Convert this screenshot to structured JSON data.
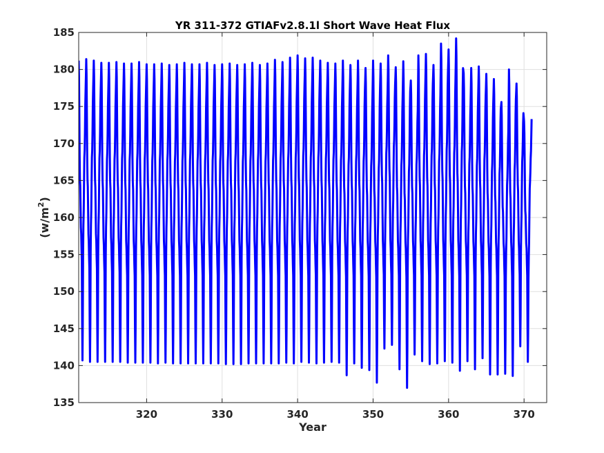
{
  "chart_data": {
    "type": "line",
    "title": "YR 311-372 GTIAFv2.8.1l Short Wave Heat Flux",
    "xlabel": "Year",
    "ylabel": "(w/m",
    "ylabel_superscript": "2",
    "ylabel_close": ")",
    "xlim": [
      311,
      373
    ],
    "ylim": [
      135,
      185
    ],
    "xticks": [
      320,
      330,
      340,
      350,
      360,
      370
    ],
    "xtick_labels": [
      "320",
      "330",
      "340",
      "350",
      "360",
      "370"
    ],
    "yticks": [
      135,
      140,
      145,
      150,
      155,
      160,
      165,
      170,
      175,
      180,
      185
    ],
    "ytick_labels": [
      "135",
      "140",
      "145",
      "150",
      "155",
      "160",
      "165",
      "170",
      "175",
      "180",
      "185"
    ],
    "grid": true,
    "series_color": "#0000ff",
    "series": [
      {
        "cycle_start_year": 311,
        "cycles_per_year": 1,
        "annual_max": [
          181.2,
          181.4,
          181.2,
          180.9,
          180.9,
          181.0,
          180.8,
          180.8,
          181.0,
          180.7,
          180.7,
          180.8,
          180.6,
          180.7,
          180.9,
          180.7,
          180.7,
          180.9,
          180.6,
          180.7,
          180.8,
          180.6,
          180.7,
          180.9,
          180.6,
          180.8,
          181.3,
          181.0,
          181.6,
          181.9,
          181.5,
          181.6,
          181.2,
          180.9,
          180.8,
          181.2,
          180.6,
          181.2,
          180.2,
          181.2,
          180.8,
          181.9,
          180.3,
          181.1,
          178.5,
          181.9,
          182.1,
          180.6,
          183.5,
          182.7,
          184.2,
          179.5,
          180.2,
          180.4,
          179.4,
          178.7,
          175.6,
          180.0,
          178.1,
          173.0
        ],
        "annual_min": [
          140.7,
          140.5,
          140.5,
          140.5,
          140.5,
          140.5,
          140.4,
          140.4,
          140.4,
          140.4,
          140.3,
          140.4,
          140.3,
          140.3,
          140.3,
          140.3,
          140.3,
          140.3,
          140.3,
          140.2,
          140.2,
          140.2,
          140.3,
          140.3,
          140.3,
          140.3,
          140.3,
          140.4,
          140.3,
          140.5,
          140.4,
          140.3,
          140.4,
          140.5,
          140.4,
          138.7,
          140.3,
          139.7,
          139.4,
          137.7,
          142.3,
          142.8,
          139.5,
          137.0,
          141.5,
          140.6,
          140.2,
          140.3,
          140.6,
          140.4,
          139.3,
          140.6,
          139.5,
          141.0,
          138.8,
          138.8,
          138.9,
          138.6,
          142.6,
          140.5
        ],
        "secondary_peak": [
          158.0,
          157.0,
          157.0,
          156.5,
          156.5,
          156.5,
          156.0,
          156.0,
          156.0,
          156.0,
          156.0,
          156.0,
          156.0,
          156.0,
          156.0,
          156.0,
          156.0,
          156.0,
          156.0,
          156.0,
          156.0,
          156.0,
          156.0,
          156.0,
          156.0,
          156.0,
          156.0,
          156.0,
          156.0,
          156.0,
          156.0,
          156.0,
          156.0,
          156.0,
          156.0,
          156.0,
          156.0,
          156.0,
          156.0,
          156.0,
          156.0,
          156.0,
          156.0,
          156.0,
          156.0,
          156.0,
          156.0,
          156.0,
          156.0,
          156.0,
          156.0,
          156.0,
          156.0,
          156.0,
          156.0,
          156.0,
          156.0,
          156.0,
          156.0,
          156.0
        ],
        "end_value": 173.3
      }
    ]
  }
}
